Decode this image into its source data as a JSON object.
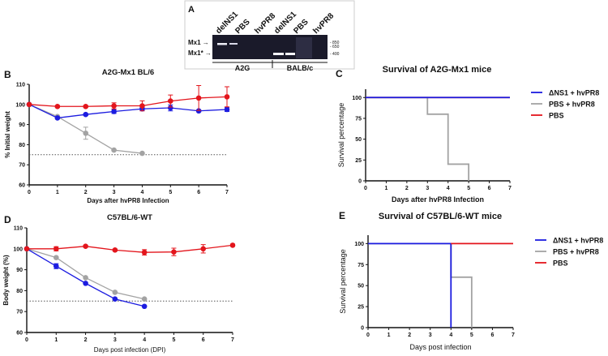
{
  "panel_labels": {
    "a": "A",
    "b": "B",
    "c": "C",
    "d": "D",
    "e": "E"
  },
  "gel": {
    "lanes": [
      "delNS1",
      "PBS",
      "hvPR8",
      "delNS1",
      "PBS",
      "hvPR8"
    ],
    "band_labels": [
      "Mx1",
      "Mx1*"
    ],
    "ladder": [
      "850",
      "650",
      "400"
    ],
    "groups": [
      "A2G",
      "BALB/c"
    ]
  },
  "colors": {
    "delNS1": "#1c1ce0",
    "pbs_hvpr8": "#a3a3a3",
    "pbs": "#e3151c"
  },
  "chart_data": [
    {
      "id": "b",
      "type": "line",
      "title": "A2G-Mx1 BL/6",
      "xlabel": "Days after hvPR8 Infection",
      "ylabel": "% Initial weight",
      "xlim": [
        0,
        7
      ],
      "ylim": [
        60,
        110
      ],
      "xticks": [
        0,
        1,
        2,
        3,
        4,
        5,
        6,
        7
      ],
      "yticks": [
        60,
        70,
        80,
        90,
        100,
        110
      ],
      "threshold": 75,
      "series": [
        {
          "name": "PBS + hvPR8",
          "color": "#a3a3a3",
          "x": [
            0,
            1,
            2,
            3,
            4
          ],
          "y": [
            100,
            94,
            85.7,
            77.3,
            75.7
          ],
          "err": [
            0,
            0,
            3,
            0,
            0
          ]
        },
        {
          "name": "ΔNS1 + hvPR8",
          "color": "#1c1ce0",
          "x": [
            0,
            1,
            2,
            3,
            4,
            5,
            6,
            7
          ],
          "y": [
            100,
            93.3,
            95,
            96.5,
            97.8,
            98.3,
            96.8,
            97.5
          ],
          "err": [
            0,
            0.5,
            0.5,
            1,
            0.8,
            1.5,
            0.5,
            1
          ]
        },
        {
          "name": "PBS",
          "color": "#e3151c",
          "x": [
            0,
            1,
            2,
            3,
            4,
            5,
            6,
            7
          ],
          "y": [
            100,
            99,
            99,
            99.3,
            99.3,
            101.7,
            103.2,
            103.8
          ],
          "err": [
            0,
            0.5,
            0.5,
            1.5,
            2.5,
            3,
            6.2,
            5
          ]
        }
      ]
    },
    {
      "id": "d",
      "type": "line",
      "title": "C57BL/6-WT",
      "xlabel": "Days post infection (DPI)",
      "ylabel": "Body weight (%)",
      "xlim": [
        0,
        7
      ],
      "ylim": [
        60,
        110
      ],
      "xticks": [
        0,
        1,
        2,
        3,
        4,
        5,
        6,
        7
      ],
      "yticks": [
        60,
        70,
        80,
        90,
        100,
        110
      ],
      "threshold": 75,
      "series": [
        {
          "name": "PBS + hvPR8",
          "color": "#a3a3a3",
          "x": [
            0,
            1,
            2,
            3,
            4
          ],
          "y": [
            100,
            95.8,
            86.2,
            79.2,
            76
          ],
          "err": [
            0,
            0,
            0,
            0,
            0
          ]
        },
        {
          "name": "ΔNS1 + hvPR8",
          "color": "#1c1ce0",
          "x": [
            0,
            1,
            2,
            3,
            4
          ],
          "y": [
            100,
            91.7,
            83.5,
            76,
            72.5
          ],
          "err": [
            0,
            1.2,
            0,
            0,
            0
          ]
        },
        {
          "name": "PBS",
          "color": "#e3151c",
          "x": [
            0,
            1,
            2,
            3,
            4,
            5,
            6,
            7
          ],
          "y": [
            100,
            100,
            101.2,
            99.4,
            98.3,
            98.5,
            100,
            101.7
          ],
          "err": [
            0,
            1,
            0.5,
            0.5,
            1.3,
            1.8,
            2,
            0.5
          ]
        }
      ]
    },
    {
      "id": "c",
      "type": "step",
      "title": "Survival of A2G-Mx1 mice",
      "xlabel": "Days after hvPR8 Infection",
      "ylabel": "Survival percentage",
      "xlim": [
        0,
        7
      ],
      "ylim": [
        0,
        110
      ],
      "xticks": [
        0,
        1,
        2,
        3,
        4,
        5,
        6,
        7
      ],
      "yticks": [
        0,
        25,
        50,
        75,
        100
      ],
      "legend": "right",
      "series": [
        {
          "name": "PBS",
          "color": "#e3151c",
          "x": [
            0,
            7
          ],
          "y": [
            100,
            100
          ]
        },
        {
          "name": "PBS + hvPR8",
          "color": "#a3a3a3",
          "x": [
            0,
            3,
            4,
            5
          ],
          "y": [
            100,
            80,
            20,
            0
          ]
        },
        {
          "name": "ΔNS1 + hvPR8",
          "color": "#1c1ce0",
          "x": [
            0,
            7
          ],
          "y": [
            100,
            100
          ]
        }
      ],
      "legend_order": [
        "ΔNS1 + hvPR8",
        "PBS + hvPR8",
        "PBS"
      ]
    },
    {
      "id": "e",
      "type": "step",
      "title": "Survival of C57BL/6-WT mice",
      "xlabel": "Days post infection",
      "ylabel": "Survival percentage",
      "xlim": [
        0,
        7
      ],
      "ylim": [
        0,
        110
      ],
      "xticks": [
        0,
        1,
        2,
        3,
        4,
        5,
        6,
        7
      ],
      "yticks": [
        0,
        25,
        50,
        75,
        100
      ],
      "legend": "right",
      "series": [
        {
          "name": "PBS + hvPR8",
          "color": "#a3a3a3",
          "x": [
            0,
            4,
            5
          ],
          "y": [
            100,
            60,
            0
          ]
        },
        {
          "name": "ΔNS1 + hvPR8",
          "color": "#1c1ce0",
          "x": [
            0,
            4
          ],
          "y": [
            100,
            0
          ]
        },
        {
          "name": "PBS",
          "color": "#e3151c",
          "x": [
            4,
            7
          ],
          "y": [
            100,
            100
          ]
        }
      ],
      "legend_order": [
        "ΔNS1 + hvPR8",
        "PBS + hvPR8",
        "PBS"
      ]
    }
  ]
}
